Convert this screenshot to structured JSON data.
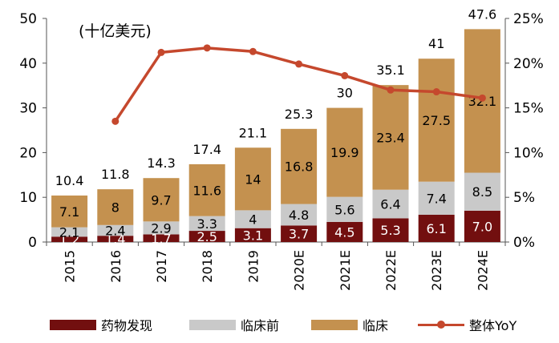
{
  "chart_data": {
    "type": "bar",
    "stacked": true,
    "unit_label": "(十亿美元)",
    "categories": [
      "2015",
      "2016",
      "2017",
      "2018",
      "2019",
      "2020E",
      "2021E",
      "2022E",
      "2023E",
      "2024E"
    ],
    "series": [
      {
        "name": "药物发现",
        "color": "#720f0f",
        "values": [
          1.2,
          1.4,
          1.7,
          2.5,
          3.1,
          3.7,
          4.5,
          5.3,
          6.1,
          7.0
        ],
        "labels": [
          "1.2",
          "1.4",
          "1.7",
          "2.5",
          "3.1",
          "3.7",
          "4.5",
          "5.3",
          "6.1",
          "7.0"
        ]
      },
      {
        "name": "临床前",
        "color": "#c9c9c9",
        "values": [
          2.1,
          2.4,
          2.9,
          3.3,
          4,
          4.8,
          5.6,
          6.4,
          7.4,
          8.5
        ],
        "labels": [
          "2.1",
          "2.4",
          "2.9",
          "3.3",
          "4",
          "4.8",
          "5.6",
          "6.4",
          "7.4",
          "8.5"
        ]
      },
      {
        "name": "临床",
        "color": "#c4914f",
        "values": [
          7.1,
          8,
          9.7,
          11.6,
          14,
          16.8,
          19.9,
          23.4,
          27.5,
          32.1
        ],
        "labels": [
          "7.1",
          "8",
          "9.7",
          "11.6",
          "14",
          "16.8",
          "19.9",
          "23.4",
          "27.5",
          "32.1"
        ]
      }
    ],
    "totals": [
      10.4,
      11.8,
      14.3,
      17.4,
      21.1,
      25.3,
      30,
      35.1,
      41,
      47.6
    ],
    "total_labels": [
      "10.4",
      "11.8",
      "14.3",
      "17.4",
      "21.1",
      "25.3",
      "30",
      "35.1",
      "41",
      "47.6"
    ],
    "line_series": {
      "name": "整体YoY",
      "color": "#c5482d",
      "axis": "right",
      "values": [
        null,
        13.5,
        21.2,
        21.7,
        21.3,
        19.9,
        18.6,
        17.0,
        16.8,
        16.1
      ]
    },
    "y_left": {
      "ylim": [
        0,
        50
      ],
      "ticks": [
        0,
        10,
        20,
        30,
        40,
        50
      ],
      "tick_labels": [
        "0",
        "10",
        "20",
        "30",
        "40",
        "50"
      ]
    },
    "y_right": {
      "ylim": [
        0,
        25
      ],
      "ticks": [
        0,
        5,
        10,
        15,
        20,
        25
      ],
      "tick_labels": [
        "0%",
        "5%",
        "10%",
        "15%",
        "20%",
        "25%"
      ]
    },
    "legend": {
      "position": "bottom",
      "items": [
        {
          "label": "药物发现",
          "kind": "bar",
          "color": "#720f0f"
        },
        {
          "label": "临床前",
          "kind": "bar",
          "color": "#c9c9c9"
        },
        {
          "label": "临床",
          "kind": "bar",
          "color": "#c4914f"
        },
        {
          "label": "整体YoY",
          "kind": "line",
          "color": "#c5482d"
        }
      ]
    },
    "grid": false
  }
}
